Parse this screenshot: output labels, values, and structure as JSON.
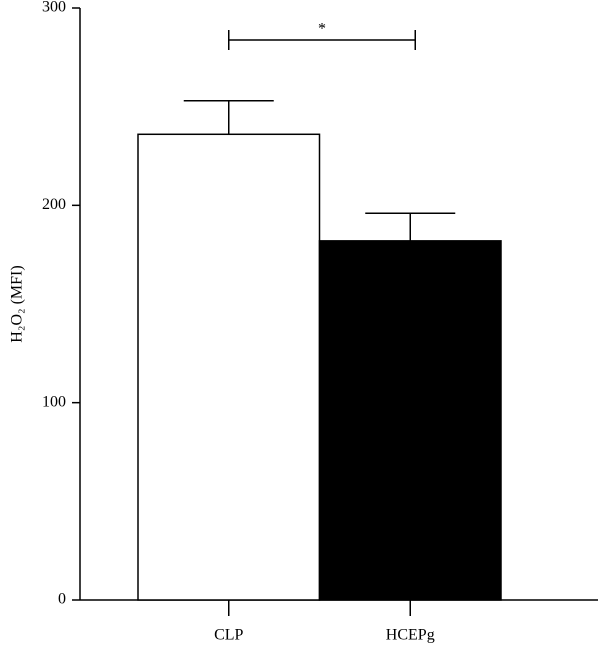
{
  "chart_data": {
    "type": "bar",
    "ylabel": "H₂O₂ (MFI)",
    "categories": [
      "CLP",
      "HCEPg"
    ],
    "values": [
      236,
      182
    ],
    "errors": [
      17,
      14
    ],
    "colors": [
      "#ffffff",
      "#000000"
    ],
    "ylim": [
      0,
      300
    ],
    "yticks": [
      0,
      100,
      200,
      300
    ],
    "annotations": [
      {
        "text": "*",
        "between": [
          0,
          1
        ]
      }
    ]
  }
}
